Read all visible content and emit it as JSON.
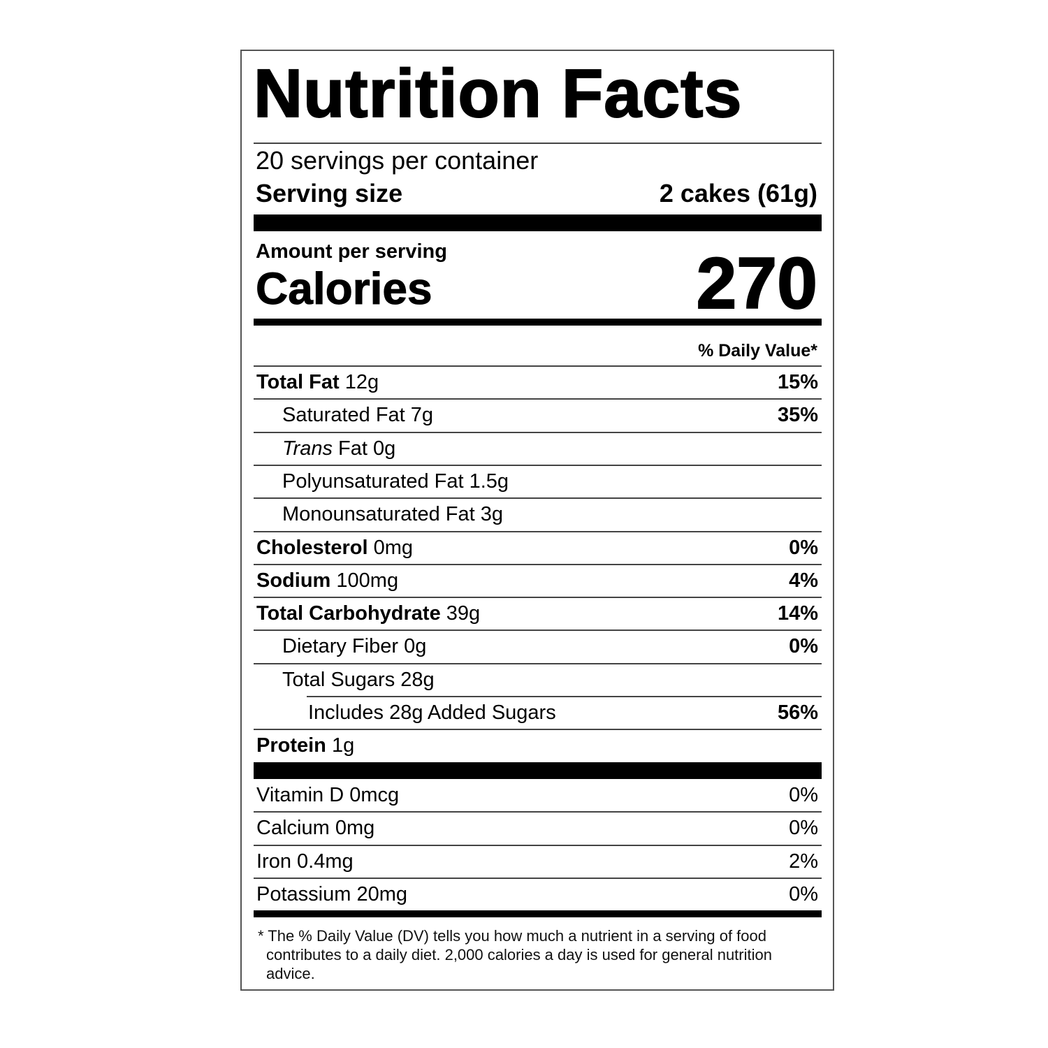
{
  "title": "Nutrition Facts",
  "servings": "20 servings per container",
  "serving_size": {
    "label": "Serving size",
    "value": "2 cakes (61g)"
  },
  "amount_per_serving": "Amount per serving",
  "calories": {
    "label": "Calories",
    "value": "270"
  },
  "daily_value_header": "% Daily Value*",
  "nutrients": [
    {
      "name": "Total Fat",
      "amount": "12g",
      "dv": "15%",
      "items": [
        {
          "name": "Saturated Fat",
          "amount": "7g",
          "dv": "35%"
        },
        {
          "name_italic": "Trans",
          "name": "Fat",
          "amount": "0g"
        },
        {
          "name": "Polyunsaturated Fat",
          "amount": "1.5g"
        },
        {
          "name": "Monounsaturated Fat",
          "amount": "3g"
        }
      ]
    },
    {
      "name": "Cholesterol",
      "amount": "0mg",
      "dv": "0%"
    },
    {
      "name": "Sodium",
      "amount": "100mg",
      "dv": "4%"
    },
    {
      "name": "Total Carbohydrate",
      "amount": "39g",
      "dv": "14%",
      "items": [
        {
          "name": "Dietary Fiber",
          "amount": "0g",
          "dv": "0%"
        },
        {
          "name": "Total Sugars",
          "amount": "28g",
          "items": [
            {
              "name": "Includes 28g Added Sugars",
              "dv": "56%"
            }
          ]
        }
      ]
    },
    {
      "name": "Protein",
      "amount": "1g"
    }
  ],
  "vitamins": [
    {
      "name": "Vitamin D",
      "amount": "0mcg",
      "dv": "0%"
    },
    {
      "name": "Calcium",
      "amount": "0mg",
      "dv": "0%"
    },
    {
      "name": "Iron",
      "amount": "0.4mg",
      "dv": "2%"
    },
    {
      "name": "Potassium",
      "amount": "20mg",
      "dv": "0%"
    }
  ],
  "footnote": "* The % Daily Value (DV) tells you how much a nutrient in a serving of food contributes to a daily diet. 2,000 calories a day is used for general nutrition advice."
}
